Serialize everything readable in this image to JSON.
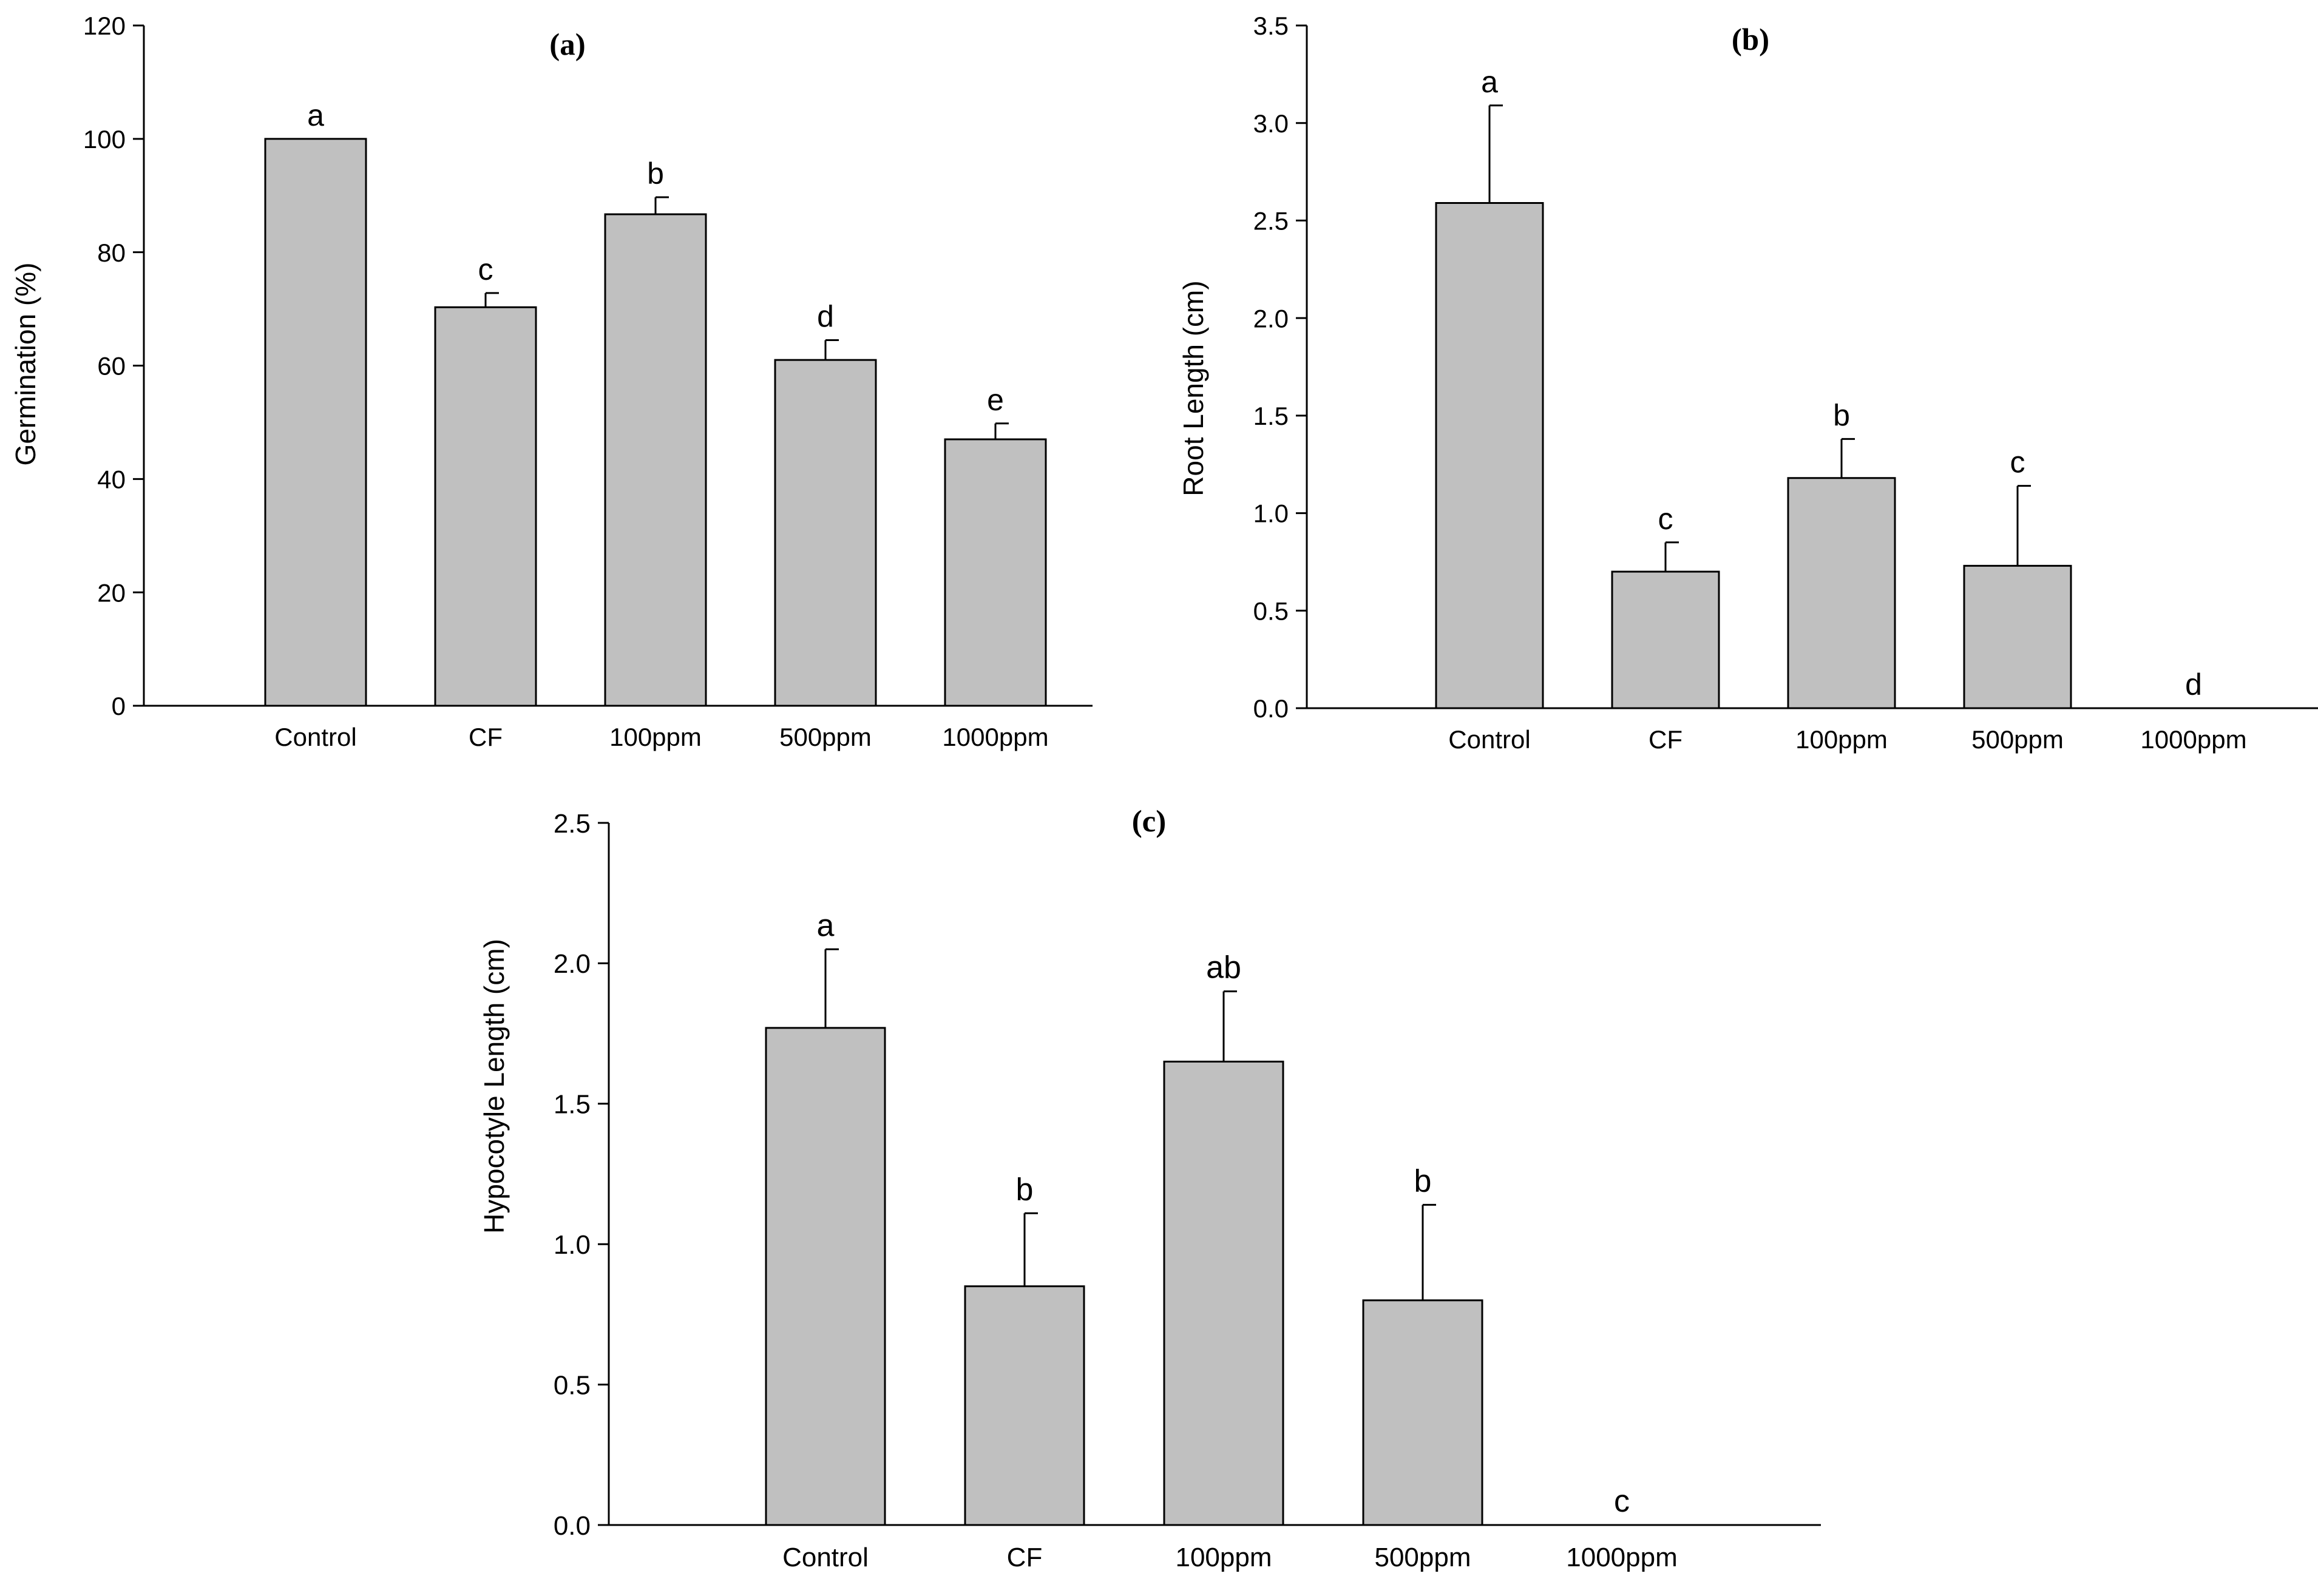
{
  "chart_data": [
    {
      "type": "bar",
      "title": "(a)",
      "xlabel": "",
      "ylabel": "Germination (%)",
      "ylim": [
        0,
        120
      ],
      "yticks": [
        0,
        20,
        40,
        60,
        80,
        100,
        120
      ],
      "ytick_labels": [
        "0",
        "20",
        "40",
        "60",
        "80",
        "100",
        "120"
      ],
      "categories": [
        "Control",
        "CF",
        "100ppm",
        "500ppm",
        "1000ppm"
      ],
      "values": [
        100,
        70.3,
        86.7,
        61,
        47
      ],
      "errors": [
        0,
        2.5,
        3,
        3.5,
        2.8
      ],
      "letters": [
        "a",
        "c",
        "b",
        "d",
        "e"
      ],
      "bar_color": "#c0c0c0",
      "grid": false
    },
    {
      "type": "bar",
      "title": "(b)",
      "xlabel": "",
      "ylabel": "Root Length (cm)",
      "ylim": [
        0,
        3.5
      ],
      "yticks": [
        0,
        0.5,
        1,
        1.5,
        2,
        2.5,
        3,
        3.5
      ],
      "ytick_labels": [
        "0.0",
        "0.5",
        "1.0",
        "1.5",
        "2.0",
        "2.5",
        "3.0",
        "3.5"
      ],
      "categories": [
        "Control",
        "CF",
        "100ppm",
        "500ppm",
        "1000ppm"
      ],
      "values": [
        2.59,
        0.7,
        1.18,
        0.73,
        0
      ],
      "errors": [
        0.5,
        0.15,
        0.2,
        0.41,
        0
      ],
      "letters": [
        "a",
        "c",
        "b",
        "c",
        "d"
      ],
      "bar_color": "#c0c0c0",
      "grid": false
    },
    {
      "type": "bar",
      "title": "(c)",
      "xlabel": "",
      "ylabel": "Hypocotyle Length (cm)",
      "ylim": [
        0,
        2.5
      ],
      "yticks": [
        0,
        0.5,
        1,
        1.5,
        2,
        2.5
      ],
      "ytick_labels": [
        "0.0",
        "0.5",
        "1.0",
        "1.5",
        "2.0",
        "2.5"
      ],
      "categories": [
        "Control",
        "CF",
        "100ppm",
        "500ppm",
        "1000ppm"
      ],
      "values": [
        1.77,
        0.85,
        1.65,
        0.8,
        0
      ],
      "errors": [
        0.28,
        0.26,
        0.25,
        0.34,
        0
      ],
      "letters": [
        "a",
        "b",
        "ab",
        "b",
        "c"
      ],
      "bar_color": "#c0c0c0",
      "grid": false
    }
  ]
}
